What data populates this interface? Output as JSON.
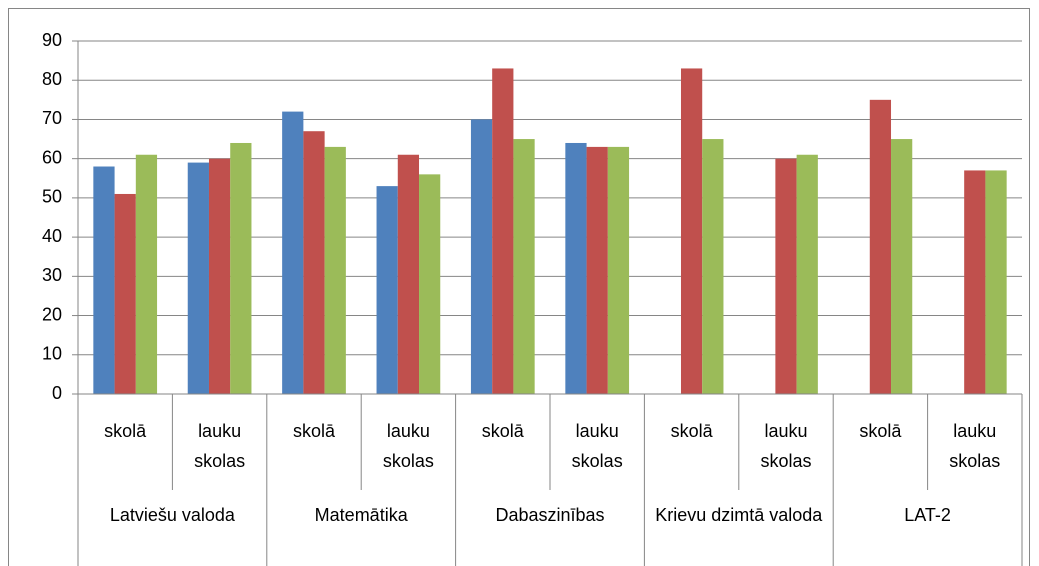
{
  "chart_data": {
    "type": "bar",
    "categories": [
      "skolā",
      "lauku skolas",
      "skolā",
      "lauku skolas",
      "skolā",
      "lauku skolas",
      "skolā",
      "lauku skolas",
      "skolā",
      "lauku skolas"
    ],
    "groups": [
      "Latviešu valoda",
      "Matemātika",
      "Dabaszinības",
      "Krievu dzimtā valoda",
      "LAT-2"
    ],
    "series": [
      {
        "color": "#4f81bd",
        "values": [
          58,
          59,
          72,
          53,
          70,
          64,
          null,
          null,
          null,
          null
        ]
      },
      {
        "color": "#c0504d",
        "values": [
          51,
          60,
          67,
          61,
          83,
          63,
          83,
          60,
          75,
          57
        ]
      },
      {
        "color": "#9bbb59",
        "values": [
          61,
          64,
          63,
          56,
          65,
          63,
          65,
          61,
          65,
          57
        ]
      }
    ],
    "ylim": [
      0,
      90
    ],
    "yticks": [
      0,
      10,
      20,
      30,
      40,
      50,
      60,
      70,
      80,
      90
    ],
    "grid": true
  }
}
